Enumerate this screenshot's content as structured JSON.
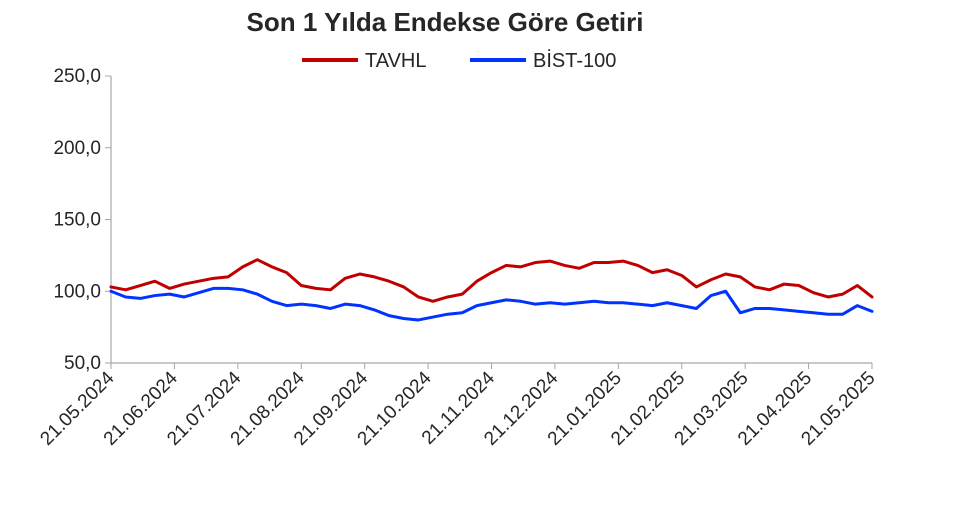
{
  "chart_data": {
    "type": "line",
    "title": "Son 1 Yılda Endekse Göre Getiri",
    "xlabel": "",
    "ylabel": "",
    "ylim": [
      50,
      250
    ],
    "yticks": [
      "50,0",
      "100,0",
      "150,0",
      "200,0",
      "250,0"
    ],
    "ytick_values": [
      50,
      100,
      150,
      200,
      250
    ],
    "xticks": [
      "21.05.2024",
      "21.06.2024",
      "21.07.2024",
      "21.08.2024",
      "21.09.2024",
      "21.10.2024",
      "21.11.2024",
      "21.12.2024",
      "21.01.2025",
      "21.02.2025",
      "21.03.2025",
      "21.04.2025",
      "21.05.2025"
    ],
    "legend_position": "top-center",
    "grid": false,
    "x": [
      "21.05.2024",
      "28.05.2024",
      "04.06.2024",
      "11.06.2024",
      "18.06.2024",
      "25.06.2024",
      "02.07.2024",
      "09.07.2024",
      "16.07.2024",
      "23.07.2024",
      "30.07.2024",
      "06.08.2024",
      "13.08.2024",
      "20.08.2024",
      "27.08.2024",
      "03.09.2024",
      "10.09.2024",
      "17.09.2024",
      "24.09.2024",
      "01.10.2024",
      "08.10.2024",
      "15.10.2024",
      "22.10.2024",
      "29.10.2024",
      "05.11.2024",
      "12.11.2024",
      "19.11.2024",
      "26.11.2024",
      "03.12.2024",
      "10.12.2024",
      "17.12.2024",
      "24.12.2024",
      "31.12.2024",
      "07.01.2025",
      "14.01.2025",
      "21.01.2025",
      "28.01.2025",
      "04.02.2025",
      "11.02.2025",
      "18.02.2025",
      "25.02.2025",
      "04.03.2025",
      "11.03.2025",
      "18.03.2025",
      "25.03.2025",
      "01.04.2025",
      "08.04.2025",
      "15.04.2025",
      "22.04.2025",
      "29.04.2025",
      "06.05.2025",
      "13.05.2025",
      "21.05.2025"
    ],
    "series": [
      {
        "name": "TAVHL",
        "color": "#C00000",
        "values": [
          103,
          101,
          104,
          107,
          102,
          105,
          107,
          109,
          110,
          117,
          122,
          117,
          113,
          104,
          102,
          101,
          109,
          112,
          110,
          107,
          103,
          96,
          93,
          96,
          98,
          107,
          113,
          118,
          117,
          120,
          121,
          118,
          116,
          120,
          120,
          121,
          118,
          113,
          115,
          111,
          103,
          108,
          112,
          110,
          103,
          101,
          105,
          104,
          99,
          96,
          98,
          104,
          96
        ]
      },
      {
        "name": "BİST-100",
        "color": "#0033FF",
        "values": [
          100,
          96,
          95,
          97,
          98,
          96,
          99,
          102,
          102,
          101,
          98,
          93,
          90,
          91,
          90,
          88,
          91,
          90,
          87,
          83,
          81,
          80,
          82,
          84,
          85,
          90,
          92,
          94,
          93,
          91,
          92,
          91,
          92,
          93,
          92,
          92,
          91,
          90,
          92,
          90,
          88,
          97,
          100,
          85,
          88,
          88,
          87,
          86,
          85,
          84,
          84,
          90,
          86
        ]
      }
    ]
  }
}
